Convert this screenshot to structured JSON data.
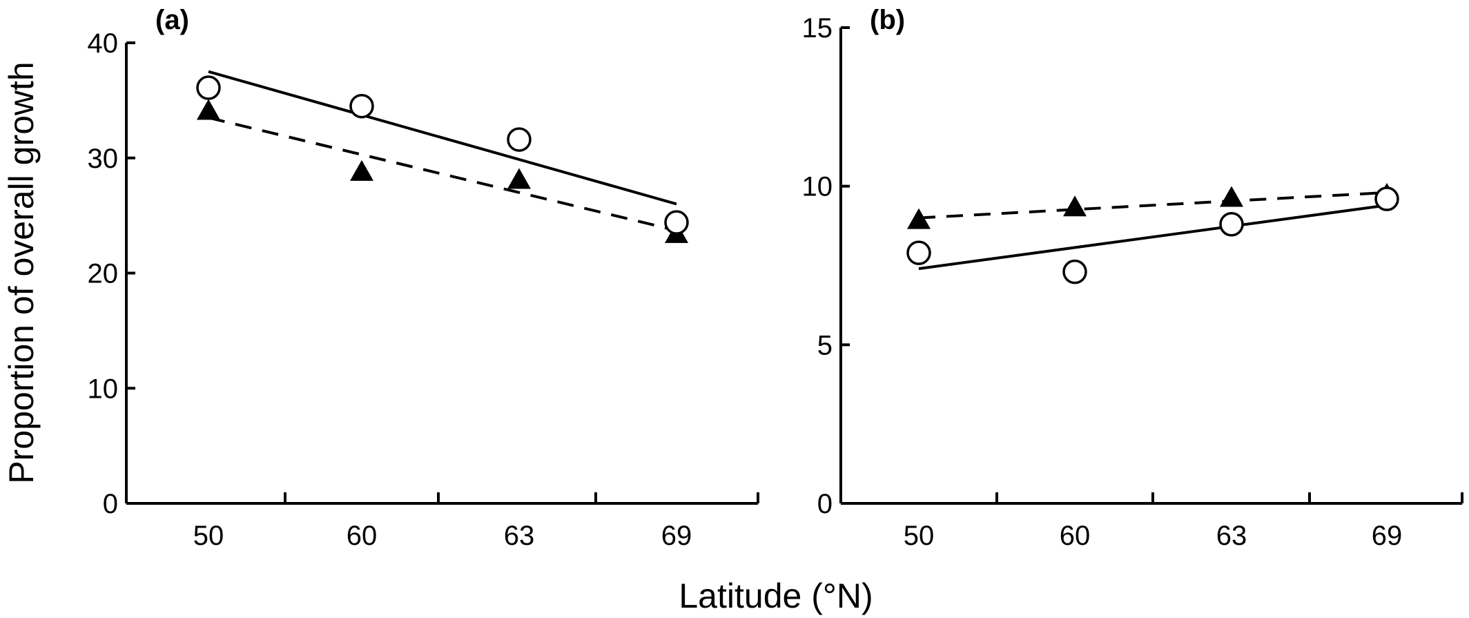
{
  "figure": {
    "ylabel": "Proportion of overall growth",
    "xlabel": "Latitude (°N)"
  },
  "chart_data": [
    {
      "type": "scatter",
      "panel_label": "(a)",
      "categories": [
        "50",
        "60",
        "63",
        "69"
      ],
      "ylim": [
        0,
        40
      ],
      "yticks": [
        "0",
        "10",
        "20",
        "30",
        "40"
      ],
      "series": [
        {
          "marker": "open-circle",
          "values": [
            36.1,
            34.5,
            31.6,
            24.4
          ],
          "fit": {
            "style": "solid",
            "start": 37.5,
            "end": 26.0
          }
        },
        {
          "marker": "filled-triangle",
          "values": [
            34.0,
            28.7,
            28.0,
            23.3
          ],
          "fit": {
            "style": "dashed",
            "start": 33.5,
            "end": 23.7
          }
        }
      ]
    },
    {
      "type": "scatter",
      "panel_label": "(b)",
      "categories": [
        "50",
        "60",
        "63",
        "69"
      ],
      "ylim": [
        0,
        15
      ],
      "yticks": [
        "0",
        "5",
        "10",
        "15"
      ],
      "series": [
        {
          "marker": "open-circle",
          "values": [
            7.9,
            7.3,
            8.8,
            9.6
          ],
          "fit": {
            "style": "solid",
            "start": 7.4,
            "end": 9.4
          }
        },
        {
          "marker": "filled-triangle",
          "values": [
            8.9,
            9.3,
            9.6,
            9.7
          ],
          "fit": {
            "style": "dashed",
            "start": 9.0,
            "end": 9.8
          }
        }
      ]
    }
  ]
}
